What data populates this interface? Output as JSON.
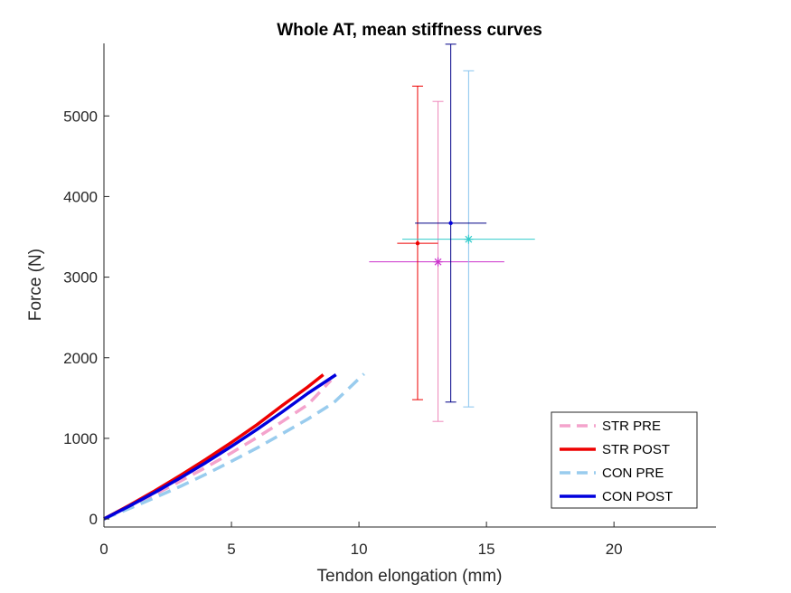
{
  "chart_data": {
    "type": "line",
    "title": "Whole AT, mean stiffness curves",
    "xlabel": "Tendon elongation (mm)",
    "ylabel": "Force (N)",
    "xlim": [
      0,
      24
    ],
    "ylim": [
      -100,
      5900
    ],
    "xticks": [
      0,
      5,
      10,
      15,
      20
    ],
    "yticks": [
      0,
      1000,
      2000,
      3000,
      4000,
      5000
    ],
    "grid": false,
    "legend_position": "bottom-right",
    "series": [
      {
        "name": "STR PRE",
        "color": "#f4a3cc",
        "style": "dashed",
        "x": [
          0,
          1,
          2,
          3,
          4,
          5,
          6,
          7,
          8,
          8.9
        ],
        "y": [
          0,
          150,
          305,
          470,
          640,
          820,
          1010,
          1210,
          1420,
          1720
        ]
      },
      {
        "name": "STR POST",
        "color": "#ee0000",
        "style": "solid",
        "x": [
          0,
          1,
          2,
          3,
          4,
          5,
          6,
          7,
          8,
          8.6
        ],
        "y": [
          0,
          170,
          350,
          540,
          740,
          950,
          1170,
          1410,
          1640,
          1790
        ]
      },
      {
        "name": "CON PRE",
        "color": "#99ccee",
        "style": "dashed",
        "x": [
          0,
          1,
          2,
          3,
          4,
          5,
          6,
          7,
          8,
          9,
          10.2
        ],
        "y": [
          0,
          130,
          265,
          405,
          555,
          715,
          880,
          1060,
          1240,
          1440,
          1800
        ]
      },
      {
        "name": "CON POST",
        "color": "#0000dd",
        "style": "solid",
        "x": [
          0,
          1,
          2,
          3,
          4,
          5,
          6,
          7,
          8,
          9.1
        ],
        "y": [
          0,
          160,
          330,
          510,
          700,
          900,
          1110,
          1330,
          1560,
          1790
        ]
      }
    ],
    "error_points": [
      {
        "series": "STR PRE",
        "marker": "asterisk",
        "point_color": "#cc33cc",
        "bar_color": "#ee88bb",
        "hbar_color": "#cc33cc",
        "x": 13.1,
        "y": 3190,
        "x_range": [
          10.4,
          15.7
        ],
        "y_range": [
          1210,
          5180
        ]
      },
      {
        "series": "STR POST",
        "marker": "dot",
        "point_color": "#ee0000",
        "bar_color": "#ee0000",
        "hbar_color": "#ee0000",
        "x": 12.3,
        "y": 3420,
        "x_range": [
          11.5,
          13.1
        ],
        "y_range": [
          1480,
          5370
        ]
      },
      {
        "series": "CON PRE",
        "marker": "asterisk",
        "point_color": "#33cccc",
        "bar_color": "#88c4ee",
        "hbar_color": "#33cccc",
        "x": 14.3,
        "y": 3470,
        "x_range": [
          11.7,
          16.9
        ],
        "y_range": [
          1390,
          5560
        ]
      },
      {
        "series": "CON POST",
        "marker": "dot",
        "point_color": "#0000dd",
        "bar_color": "#000088",
        "hbar_color": "#000088",
        "x": 13.6,
        "y": 3670,
        "x_range": [
          12.2,
          15.0
        ],
        "y_range": [
          1450,
          5890
        ]
      }
    ]
  }
}
